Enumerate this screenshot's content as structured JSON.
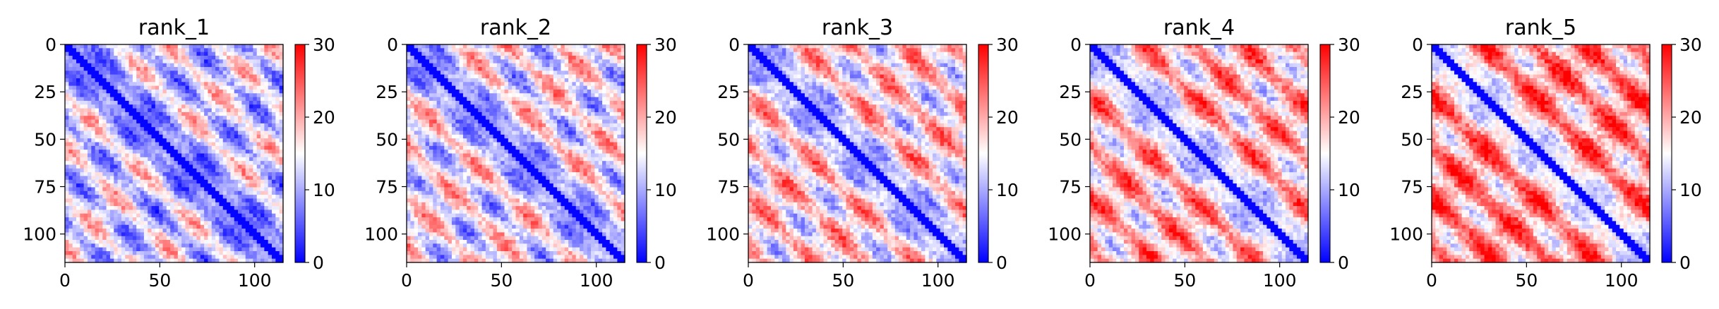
{
  "chart_data": [
    {
      "type": "heatmap",
      "title": "rank_1",
      "x_ticks": [
        0,
        50,
        100
      ],
      "y_ticks": [
        0,
        25,
        50,
        75,
        100
      ],
      "xlim": [
        0,
        115
      ],
      "ylim": [
        115,
        0
      ],
      "colorbar": {
        "ticks": [
          0,
          10,
          20,
          30
        ],
        "range": [
          0,
          30
        ],
        "colormap": "bwr"
      }
    },
    {
      "type": "heatmap",
      "title": "rank_2",
      "x_ticks": [
        0,
        50,
        100
      ],
      "y_ticks": [
        0,
        25,
        50,
        75,
        100
      ],
      "xlim": [
        0,
        115
      ],
      "ylim": [
        115,
        0
      ],
      "colorbar": {
        "ticks": [
          0,
          10,
          20,
          30
        ],
        "range": [
          0,
          30
        ],
        "colormap": "bwr"
      }
    },
    {
      "type": "heatmap",
      "title": "rank_3",
      "x_ticks": [
        0,
        50,
        100
      ],
      "y_ticks": [
        0,
        25,
        50,
        75,
        100
      ],
      "xlim": [
        0,
        115
      ],
      "ylim": [
        115,
        0
      ],
      "colorbar": {
        "ticks": [
          0,
          10,
          20,
          30
        ],
        "range": [
          0,
          30
        ],
        "colormap": "bwr"
      }
    },
    {
      "type": "heatmap",
      "title": "rank_4",
      "x_ticks": [
        0,
        50,
        100
      ],
      "y_ticks": [
        0,
        25,
        50,
        75,
        100
      ],
      "xlim": [
        0,
        115
      ],
      "ylim": [
        115,
        0
      ],
      "colorbar": {
        "ticks": [
          0,
          10,
          20,
          30
        ],
        "range": [
          0,
          30
        ],
        "colormap": "bwr"
      }
    },
    {
      "type": "heatmap",
      "title": "rank_5",
      "x_ticks": [
        0,
        50,
        100
      ],
      "y_ticks": [
        0,
        25,
        50,
        75,
        100
      ],
      "xlim": [
        0,
        115
      ],
      "ylim": [
        115,
        0
      ],
      "colorbar": {
        "ticks": [
          0,
          10,
          20,
          30
        ],
        "range": [
          0,
          30
        ],
        "colormap": "bwr"
      }
    }
  ],
  "colors": {
    "low": "#0000ff",
    "mid": "#ffffff",
    "high": "#ff0000"
  }
}
